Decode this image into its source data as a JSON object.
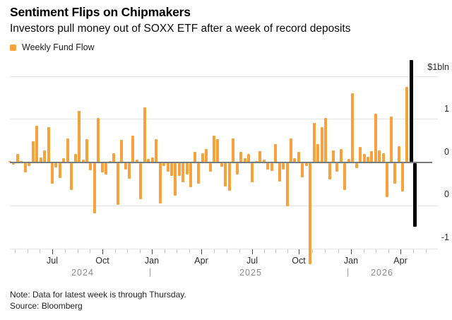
{
  "header": {
    "title": "Sentiment Flips on Chipmakers",
    "subtitle": "Investors pull money out of SOXX ETF after a week of record deposits"
  },
  "legend": {
    "label": "Weekly Fund Flow",
    "swatch_color": "#F9A23C"
  },
  "chart_data": {
    "type": "bar",
    "title": "Sentiment Flips on Chipmakers",
    "subtitle": "Investors pull money out of SOXX ETF after a week of record deposits",
    "unit": "$bln",
    "series": [
      {
        "name": "Weekly Fund Flow",
        "color": "#F9A23C",
        "highlight_color": "#000000",
        "highlight_last": 2,
        "values": [
          0.02,
          -0.02,
          0.1,
          0.02,
          -0.11,
          -0.03,
          0.25,
          0.43,
          0.06,
          0.14,
          0.41,
          -0.24,
          -0.05,
          -0.17,
          0.05,
          0.28,
          -0.31,
          0.1,
          0.6,
          0.03,
          0.27,
          -0.08,
          -0.58,
          0.52,
          -0.11,
          -0.13,
          0.02,
          0.11,
          -0.48,
          0.26,
          -0.07,
          -0.18,
          0.31,
          0.03,
          -0.42,
          0.64,
          0.04,
          0.06,
          0.27,
          -0.47,
          -0.03,
          -0.1,
          -0.15,
          -0.38,
          -0.15,
          -0.22,
          -0.13,
          -0.28,
          0.12,
          -0.24,
          0.11,
          0.16,
          -0.1,
          0.31,
          0.27,
          -0.04,
          -0.27,
          -0.32,
          0.28,
          -0.13,
          0.12,
          0.05,
          0.1,
          -0.22,
          0.02,
          0.13,
          0.03,
          -0.07,
          -0.09,
          0.21,
          -0.21,
          -0.07,
          -0.5,
          0.28,
          0.05,
          0.12,
          -0.16,
          -0.03,
          -1.17,
          0.46,
          0.21,
          0.41,
          0.52,
          -0.19,
          0.14,
          -0.1,
          0.16,
          -0.31,
          0.04,
          0.8,
          -0.06,
          0.18,
          0.1,
          0.07,
          0.13,
          0.57,
          0.14,
          0.11,
          -0.39,
          0.53,
          -0.24,
          0.19,
          -0.33,
          0.88,
          1.19,
          -0.74
        ]
      }
    ],
    "y_axis": {
      "tick_labels": [
        "$1bln",
        "1",
        "0",
        "0",
        "-1"
      ],
      "tick_values": [
        1.0,
        0.5,
        0,
        -0.5,
        -1.0
      ],
      "ylim": [
        -1.2,
        1.2
      ],
      "grid": true,
      "side": "right"
    },
    "x_axis": {
      "month_tick_labels": [
        "Jul",
        "Oct",
        "Jan",
        "Apr",
        "Jul",
        "Oct",
        "Jan",
        "Apr"
      ],
      "year_labels": [
        "2024",
        "2025",
        "2026"
      ],
      "year_separator": "|",
      "range": "Apr 2024 - Apr 2026",
      "interval": "weekly"
    },
    "legend_position": "top-left"
  },
  "footer": {
    "note": "Note: Data for latest week is through Thursday.",
    "source": "Source: Bloomberg"
  }
}
